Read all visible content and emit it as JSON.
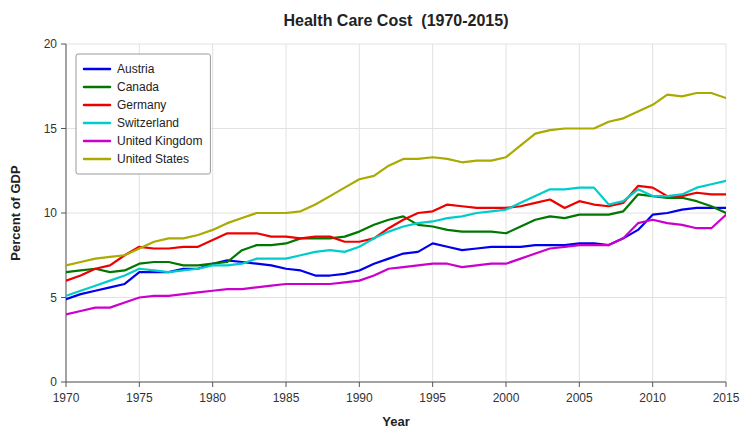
{
  "chart_data": {
    "type": "line",
    "title": "Health Care Cost  (1970-2015)",
    "x_label": "Year",
    "y_label": "Percent of GDP",
    "x": [
      1970,
      1971,
      1972,
      1973,
      1974,
      1975,
      1976,
      1977,
      1978,
      1979,
      1980,
      1981,
      1982,
      1983,
      1984,
      1985,
      1986,
      1987,
      1988,
      1989,
      1990,
      1991,
      1992,
      1993,
      1994,
      1995,
      1996,
      1997,
      1998,
      1999,
      2000,
      2001,
      2002,
      2003,
      2004,
      2005,
      2006,
      2007,
      2008,
      2009,
      2010,
      2011,
      2012,
      2013,
      2014,
      2015
    ],
    "series": [
      {
        "name": "Austria",
        "color": "#0000ee",
        "values": [
          4.9,
          5.2,
          5.4,
          5.6,
          5.8,
          6.5,
          6.5,
          6.5,
          6.7,
          6.7,
          7.0,
          7.2,
          7.1,
          7.0,
          6.9,
          6.7,
          6.6,
          6.3,
          6.3,
          6.4,
          6.6,
          7.0,
          7.3,
          7.6,
          7.7,
          8.2,
          8.0,
          7.8,
          7.9,
          8.0,
          8.0,
          8.0,
          8.1,
          8.1,
          8.1,
          8.2,
          8.2,
          8.1,
          8.5,
          9.0,
          9.9,
          10.0,
          10.2,
          10.3,
          10.3,
          10.3
        ]
      },
      {
        "name": "Canada",
        "color": "#007700",
        "values": [
          6.5,
          6.6,
          6.7,
          6.5,
          6.6,
          7.0,
          7.1,
          7.1,
          6.9,
          6.9,
          7.0,
          7.1,
          7.8,
          8.1,
          8.1,
          8.2,
          8.5,
          8.5,
          8.5,
          8.6,
          8.9,
          9.3,
          9.6,
          9.8,
          9.3,
          9.2,
          9.0,
          8.9,
          8.9,
          8.9,
          8.8,
          9.2,
          9.6,
          9.8,
          9.7,
          9.9,
          9.9,
          9.9,
          10.1,
          11.1,
          11.0,
          10.9,
          10.9,
          10.7,
          10.4,
          10.0
        ]
      },
      {
        "name": "Germany",
        "color": "#ee0000",
        "values": [
          6.0,
          6.3,
          6.7,
          6.9,
          7.5,
          8.0,
          7.9,
          7.9,
          8.0,
          8.0,
          8.4,
          8.8,
          8.8,
          8.8,
          8.6,
          8.6,
          8.5,
          8.6,
          8.6,
          8.3,
          8.3,
          8.5,
          9.1,
          9.6,
          10.0,
          10.1,
          10.5,
          10.4,
          10.3,
          10.3,
          10.3,
          10.4,
          10.6,
          10.8,
          10.3,
          10.7,
          10.5,
          10.4,
          10.6,
          11.6,
          11.5,
          11.0,
          11.0,
          11.2,
          11.1,
          11.1
        ]
      },
      {
        "name": "Switzerland",
        "color": "#00cccc",
        "values": [
          5.1,
          5.4,
          5.7,
          6.0,
          6.3,
          6.7,
          6.6,
          6.5,
          6.6,
          6.7,
          6.9,
          6.9,
          7.0,
          7.3,
          7.3,
          7.3,
          7.5,
          7.7,
          7.8,
          7.7,
          8.0,
          8.5,
          8.9,
          9.2,
          9.4,
          9.5,
          9.7,
          9.8,
          10.0,
          10.1,
          10.2,
          10.6,
          11.0,
          11.4,
          11.4,
          11.5,
          11.5,
          10.5,
          10.7,
          11.4,
          11.0,
          11.0,
          11.1,
          11.5,
          11.7,
          11.9
        ]
      },
      {
        "name": "United Kingdom",
        "color": "#cc00cc",
        "values": [
          4.0,
          4.2,
          4.4,
          4.4,
          4.7,
          5.0,
          5.1,
          5.1,
          5.2,
          5.3,
          5.4,
          5.5,
          5.5,
          5.6,
          5.7,
          5.8,
          5.8,
          5.8,
          5.8,
          5.9,
          6.0,
          6.3,
          6.7,
          6.8,
          6.9,
          7.0,
          7.0,
          6.8,
          6.9,
          7.0,
          7.0,
          7.3,
          7.6,
          7.9,
          8.0,
          8.1,
          8.1,
          8.1,
          8.5,
          9.4,
          9.6,
          9.4,
          9.3,
          9.1,
          9.1,
          9.9
        ]
      },
      {
        "name": "United States",
        "color": "#aaaa00",
        "values": [
          6.9,
          7.1,
          7.3,
          7.4,
          7.5,
          7.9,
          8.3,
          8.5,
          8.5,
          8.7,
          9.0,
          9.4,
          9.7,
          10.0,
          10.0,
          10.0,
          10.1,
          10.5,
          11.0,
          11.5,
          12.0,
          12.2,
          12.8,
          13.2,
          13.2,
          13.3,
          13.2,
          13.0,
          13.1,
          13.1,
          13.3,
          14.0,
          14.7,
          14.9,
          15.0,
          15.0,
          15.0,
          15.4,
          15.6,
          16.0,
          16.4,
          17.0,
          16.9,
          17.1,
          17.1,
          16.8
        ]
      }
    ],
    "xlim": [
      1970,
      2015
    ],
    "ylim": [
      0,
      20
    ],
    "xticks": [
      1970,
      1975,
      1980,
      1985,
      1990,
      1995,
      2000,
      2005,
      2010,
      2015
    ],
    "yticks": [
      0,
      5,
      10,
      15,
      20
    ],
    "grid": true,
    "legend": "upper left"
  }
}
